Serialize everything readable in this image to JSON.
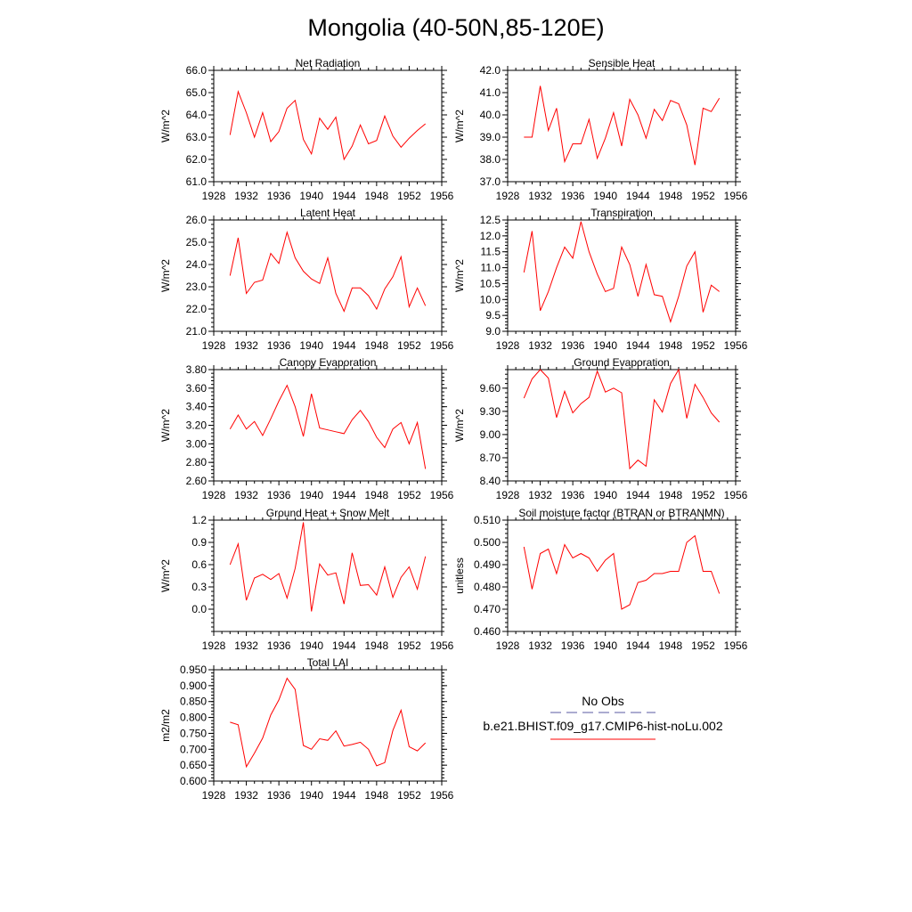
{
  "title": "Mongolia (40-50N,85-120E)",
  "colors": {
    "model": "#ff0000",
    "obs": "#5a5aa0",
    "axis": "#000000"
  },
  "legend": {
    "obs_label": "No Obs",
    "model_label": "b.e21.BHIST.f09_g17.CMIP6-hist-noLu.002"
  },
  "chart_data": [
    {
      "type": "line",
      "title": "Net Radiation",
      "ylabel": "W/m^2",
      "x": [
        1930,
        1931,
        1932,
        1933,
        1934,
        1935,
        1936,
        1937,
        1938,
        1939,
        1940,
        1941,
        1942,
        1943,
        1944,
        1945,
        1946,
        1947,
        1948,
        1949,
        1950,
        1951,
        1952,
        1953,
        1954
      ],
      "series": [
        {
          "values": [
            63.1,
            65.05,
            64.1,
            63.0,
            64.1,
            62.8,
            63.25,
            64.3,
            64.65,
            62.9,
            62.25,
            63.85,
            63.35,
            63.9,
            62.0,
            62.6,
            63.55,
            62.7,
            62.85,
            63.95,
            63.05,
            62.55,
            62.95,
            63.3,
            63.6
          ]
        }
      ],
      "xlim": [
        1928,
        1956
      ],
      "ylim": [
        61.0,
        66.0
      ],
      "xticks": [
        "1928",
        "1932",
        "1936",
        "1940",
        "1944",
        "1948",
        "1952",
        "1956"
      ],
      "yticks": [
        "61.0",
        "62.0",
        "63.0",
        "64.0",
        "65.0",
        "66.0"
      ]
    },
    {
      "type": "line",
      "title": "Sensible Heat",
      "ylabel": "W/m^2",
      "x": [
        1930,
        1931,
        1932,
        1933,
        1934,
        1935,
        1936,
        1937,
        1938,
        1939,
        1940,
        1941,
        1942,
        1943,
        1944,
        1945,
        1946,
        1947,
        1948,
        1949,
        1950,
        1951,
        1952,
        1953,
        1954
      ],
      "series": [
        {
          "values": [
            39.0,
            39.0,
            41.3,
            39.3,
            40.3,
            37.9,
            38.7,
            38.7,
            39.8,
            38.05,
            38.95,
            40.1,
            38.6,
            40.7,
            40.0,
            38.95,
            40.25,
            39.75,
            40.65,
            40.5,
            39.55,
            37.75,
            40.3,
            40.15,
            40.75
          ]
        }
      ],
      "xlim": [
        1928,
        1956
      ],
      "ylim": [
        37.0,
        42.0
      ],
      "xticks": [
        "1928",
        "1932",
        "1936",
        "1940",
        "1944",
        "1948",
        "1952",
        "1956"
      ],
      "yticks": [
        "37.0",
        "38.0",
        "39.0",
        "40.0",
        "41.0",
        "42.0"
      ]
    },
    {
      "type": "line",
      "title": "Latent Heat",
      "ylabel": "W/m^2",
      "x": [
        1930,
        1931,
        1932,
        1933,
        1934,
        1935,
        1936,
        1937,
        1938,
        1939,
        1940,
        1941,
        1942,
        1943,
        1944,
        1945,
        1946,
        1947,
        1948,
        1949,
        1950,
        1951,
        1952,
        1953,
        1954
      ],
      "series": [
        {
          "values": [
            23.5,
            25.2,
            22.7,
            23.2,
            23.3,
            24.5,
            24.05,
            25.45,
            24.3,
            23.7,
            23.35,
            23.15,
            24.3,
            22.7,
            21.9,
            22.95,
            22.95,
            22.6,
            22.0,
            22.9,
            23.45,
            24.35,
            22.1,
            22.95,
            22.15
          ]
        }
      ],
      "xlim": [
        1928,
        1956
      ],
      "ylim": [
        21.0,
        26.0
      ],
      "xticks": [
        "1928",
        "1932",
        "1936",
        "1940",
        "1944",
        "1948",
        "1952",
        "1956"
      ],
      "yticks": [
        "21.0",
        "22.0",
        "23.0",
        "24.0",
        "25.0",
        "26.0"
      ]
    },
    {
      "type": "line",
      "title": "Transpiration",
      "ylabel": "W/m^2",
      "x": [
        1930,
        1931,
        1932,
        1933,
        1934,
        1935,
        1936,
        1937,
        1938,
        1939,
        1940,
        1941,
        1942,
        1943,
        1944,
        1945,
        1946,
        1947,
        1948,
        1949,
        1950,
        1951,
        1952,
        1953,
        1954
      ],
      "series": [
        {
          "values": [
            10.85,
            12.15,
            9.65,
            10.25,
            11.0,
            11.65,
            11.3,
            12.45,
            11.5,
            10.8,
            10.25,
            10.35,
            11.65,
            11.1,
            10.1,
            11.1,
            10.15,
            10.1,
            9.3,
            10.1,
            11.05,
            11.5,
            9.6,
            10.45,
            10.25
          ]
        }
      ],
      "xlim": [
        1928,
        1956
      ],
      "ylim": [
        9.0,
        12.5
      ],
      "xticks": [
        "1928",
        "1932",
        "1936",
        "1940",
        "1944",
        "1948",
        "1952",
        "1956"
      ],
      "yticks": [
        "9.0",
        "9.5",
        "10.0",
        "10.5",
        "11.0",
        "11.5",
        "12.0",
        "12.5"
      ]
    },
    {
      "type": "line",
      "title": "Canopy Evaporation",
      "ylabel": "W/m^2",
      "x": [
        1930,
        1931,
        1932,
        1933,
        1934,
        1935,
        1936,
        1937,
        1938,
        1939,
        1940,
        1941,
        1942,
        1943,
        1944,
        1945,
        1946,
        1947,
        1948,
        1949,
        1950,
        1951,
        1952,
        1953,
        1954
      ],
      "series": [
        {
          "values": [
            3.16,
            3.31,
            3.16,
            3.24,
            3.09,
            3.27,
            3.46,
            3.63,
            3.4,
            3.08,
            3.54,
            3.17,
            3.15,
            3.13,
            3.11,
            3.26,
            3.36,
            3.24,
            3.07,
            2.96,
            3.16,
            3.23,
            3.0,
            3.23,
            2.73
          ]
        }
      ],
      "xlim": [
        1928,
        1956
      ],
      "ylim": [
        2.6,
        3.8
      ],
      "xticks": [
        "1928",
        "1932",
        "1936",
        "1940",
        "1944",
        "1948",
        "1952",
        "1956"
      ],
      "yticks": [
        "2.60",
        "2.80",
        "3.00",
        "3.20",
        "3.40",
        "3.60",
        "3.80"
      ]
    },
    {
      "type": "line",
      "title": "Ground Evaporation",
      "ylabel": "W/m^2",
      "x": [
        1930,
        1931,
        1932,
        1933,
        1934,
        1935,
        1936,
        1937,
        1938,
        1939,
        1940,
        1941,
        1942,
        1943,
        1944,
        1945,
        1946,
        1947,
        1948,
        1949,
        1950,
        1951,
        1952,
        1953,
        1954
      ],
      "series": [
        {
          "values": [
            9.47,
            9.72,
            9.84,
            9.73,
            9.22,
            9.56,
            9.28,
            9.4,
            9.48,
            9.82,
            9.55,
            9.6,
            9.54,
            8.56,
            8.67,
            8.59,
            9.45,
            9.29,
            9.66,
            9.84,
            9.21,
            9.65,
            9.48,
            9.28,
            9.16
          ]
        }
      ],
      "xlim": [
        1928,
        1956
      ],
      "ylim": [
        8.4,
        9.84
      ],
      "xticks": [
        "1928",
        "1932",
        "1936",
        "1940",
        "1944",
        "1948",
        "1952",
        "1956"
      ],
      "yticks": [
        "8.40",
        "8.70",
        "9.00",
        "9.30",
        "9.60"
      ]
    },
    {
      "type": "line",
      "title": "Ground Heat + Snow Melt",
      "ylabel": "W/m^2",
      "x": [
        1930,
        1931,
        1932,
        1933,
        1934,
        1935,
        1936,
        1937,
        1938,
        1939,
        1940,
        1941,
        1942,
        1943,
        1944,
        1945,
        1946,
        1947,
        1948,
        1949,
        1950,
        1951,
        1952,
        1953,
        1954
      ],
      "series": [
        {
          "values": [
            0.6,
            0.88,
            0.12,
            0.42,
            0.47,
            0.4,
            0.48,
            0.15,
            0.55,
            1.17,
            -0.03,
            0.61,
            0.46,
            0.49,
            0.07,
            0.76,
            0.32,
            0.33,
            0.19,
            0.57,
            0.16,
            0.43,
            0.57,
            0.27,
            0.71
          ]
        }
      ],
      "xlim": [
        1928,
        1956
      ],
      "ylim": [
        -0.3,
        1.2
      ],
      "xticks": [
        "1928",
        "1932",
        "1936",
        "1940",
        "1944",
        "1948",
        "1952",
        "1956"
      ],
      "yticks": [
        "0.0",
        "0.3",
        "0.6",
        "0.9",
        "1.2"
      ]
    },
    {
      "type": "line",
      "title": "Soil moisture factor (BTRAN or BTRANMN)",
      "ylabel": "unitless",
      "x": [
        1930,
        1931,
        1932,
        1933,
        1934,
        1935,
        1936,
        1937,
        1938,
        1939,
        1940,
        1941,
        1942,
        1943,
        1944,
        1945,
        1946,
        1947,
        1948,
        1949,
        1950,
        1951,
        1952,
        1953,
        1954
      ],
      "series": [
        {
          "values": [
            0.498,
            0.479,
            0.495,
            0.497,
            0.486,
            0.499,
            0.493,
            0.495,
            0.493,
            0.487,
            0.492,
            0.495,
            0.47,
            0.472,
            0.482,
            0.483,
            0.486,
            0.486,
            0.487,
            0.487,
            0.5,
            0.503,
            0.487,
            0.487,
            0.477
          ]
        }
      ],
      "xlim": [
        1928,
        1956
      ],
      "ylim": [
        0.46,
        0.51
      ],
      "xticks": [
        "1928",
        "1932",
        "1936",
        "1940",
        "1944",
        "1948",
        "1952",
        "1956"
      ],
      "yticks": [
        "0.460",
        "0.470",
        "0.480",
        "0.490",
        "0.500",
        "0.510"
      ]
    },
    {
      "type": "line",
      "title": "Total LAI",
      "ylabel": "m2/m2",
      "x": [
        1930,
        1931,
        1932,
        1933,
        1934,
        1935,
        1936,
        1937,
        1938,
        1939,
        1940,
        1941,
        1942,
        1943,
        1944,
        1945,
        1946,
        1947,
        1948,
        1949,
        1950,
        1951,
        1952,
        1953,
        1954
      ],
      "series": [
        {
          "values": [
            0.785,
            0.777,
            0.645,
            0.688,
            0.735,
            0.808,
            0.855,
            0.923,
            0.888,
            0.712,
            0.7,
            0.733,
            0.728,
            0.758,
            0.71,
            0.715,
            0.722,
            0.7,
            0.648,
            0.658,
            0.759,
            0.823,
            0.708,
            0.695,
            0.72
          ]
        }
      ],
      "xlim": [
        1928,
        1956
      ],
      "ylim": [
        0.6,
        0.95
      ],
      "xticks": [
        "1928",
        "1932",
        "1936",
        "1940",
        "1944",
        "1948",
        "1952",
        "1956"
      ],
      "yticks": [
        "0.600",
        "0.650",
        "0.700",
        "0.750",
        "0.800",
        "0.850",
        "0.900",
        "0.950"
      ]
    }
  ]
}
